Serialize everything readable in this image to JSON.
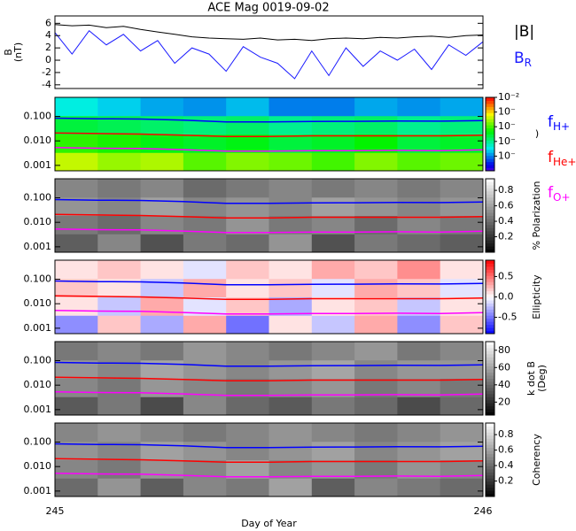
{
  "chart_data": [
    {
      "type": "line",
      "title": "ACE Mag 0019-09-02",
      "ylabel": [
        "B",
        "(nT)"
      ],
      "xlim": [
        245,
        246
      ],
      "ylim": [
        -4.6,
        7.2
      ],
      "yticks": [
        -4,
        -2,
        0,
        2,
        4,
        6
      ],
      "x": [
        245,
        245.04,
        245.08,
        245.12,
        245.16,
        245.2,
        245.24,
        245.28,
        245.32,
        245.36,
        245.4,
        245.44,
        245.48,
        245.52,
        245.56,
        245.6,
        245.64,
        245.68,
        245.72,
        245.76,
        245.8,
        245.84,
        245.88,
        245.92,
        245.96,
        246
      ],
      "series": [
        {
          "name": "|B|",
          "color": "#000000",
          "values": [
            5.8,
            5.6,
            5.7,
            5.3,
            5.5,
            5.0,
            4.6,
            4.2,
            3.8,
            3.6,
            3.5,
            3.4,
            3.6,
            3.3,
            3.4,
            3.2,
            3.5,
            3.6,
            3.5,
            3.7,
            3.6,
            3.8,
            3.9,
            3.7,
            4.0,
            4.1
          ]
        },
        {
          "name": "B",
          "subscript": "R",
          "color": "#1a1aff",
          "values": [
            4.5,
            1.0,
            4.8,
            2.5,
            4.2,
            1.5,
            3.2,
            -0.5,
            2.0,
            1.0,
            -1.8,
            2.2,
            0.5,
            -0.5,
            -3.0,
            1.5,
            -2.5,
            2.0,
            -1.0,
            1.5,
            0.0,
            1.8,
            -1.5,
            2.5,
            0.8,
            3.0
          ]
        }
      ]
    },
    {
      "type": "spectrogram",
      "xlim": [
        245,
        246
      ],
      "ylim": [
        0.0006,
        0.6
      ],
      "ylog": true,
      "yticks": [
        {
          "value": 0.001,
          "label": "0.001"
        },
        {
          "value": 0.01,
          "label": "0.010"
        },
        {
          "value": 0.1,
          "label": "0.100"
        }
      ],
      "colormap": "rainbow",
      "clim": [
        -7,
        -2
      ],
      "cticks": [
        {
          "value": -2,
          "label": "10⁻²"
        },
        {
          "value": -3,
          "label": "10⁻"
        },
        {
          "value": -4,
          "label": "10⁻"
        },
        {
          "value": -5,
          "label": "10⁻"
        },
        {
          "value": -6,
          "label": "10⁻"
        }
      ],
      "colorbar_label": [
        ")"
      ],
      "z": [
        [
          -3.4,
          -3.6,
          -3.5,
          -3.9,
          -3.7,
          -3.8,
          -4.0,
          -3.7,
          -3.9,
          -3.8
        ],
        [
          -4.1,
          -4.2,
          -4.4,
          -4.5,
          -4.4,
          -4.6,
          -4.5,
          -4.3,
          -4.6,
          -4.5
        ],
        [
          -4.6,
          -4.7,
          -4.8,
          -4.9,
          -4.8,
          -5.0,
          -4.9,
          -4.8,
          -5.0,
          -4.9
        ],
        [
          -5.4,
          -5.6,
          -5.8,
          -5.9,
          -5.7,
          -6.0,
          -6.0,
          -5.8,
          -5.9,
          -5.8
        ]
      ],
      "fx": [
        245,
        245.1,
        245.2,
        245.3,
        245.4,
        245.5,
        245.6,
        245.7,
        245.8,
        245.9,
        246
      ],
      "series": [
        {
          "name": "f",
          "subscript": "H+",
          "color": "#0000ff",
          "values": [
            0.085,
            0.08,
            0.078,
            0.07,
            0.06,
            0.06,
            0.062,
            0.063,
            0.065,
            0.064,
            0.068
          ]
        },
        {
          "name": "f",
          "subscript": "He+",
          "color": "#ff0000",
          "values": [
            0.021,
            0.02,
            0.019,
            0.017,
            0.015,
            0.015,
            0.016,
            0.016,
            0.016,
            0.016,
            0.017
          ]
        },
        {
          "name": "f",
          "subscript": "O+",
          "color": "#ff00ff",
          "values": [
            0.0053,
            0.005,
            0.0049,
            0.0044,
            0.0038,
            0.0038,
            0.004,
            0.004,
            0.0041,
            0.004,
            0.0043
          ]
        }
      ]
    },
    {
      "type": "spectrogram",
      "xlim": [
        245,
        246
      ],
      "ylim": [
        0.0006,
        0.6
      ],
      "ylog": true,
      "yticks": [
        {
          "value": 0.001,
          "label": "0.001"
        },
        {
          "value": 0.01,
          "label": "0.010"
        },
        {
          "value": 0.1,
          "label": "0.100"
        }
      ],
      "colormap": "gray",
      "clim": [
        0,
        0.95
      ],
      "cticks": [
        0.2,
        0.4,
        0.6,
        0.8
      ],
      "colorbar_label": [
        "% Polarization"
      ],
      "z": [
        [
          0.35,
          0.5,
          0.3,
          0.45,
          0.4,
          0.55,
          0.3,
          0.45,
          0.4,
          0.35
        ],
        [
          0.45,
          0.4,
          0.5,
          0.45,
          0.55,
          0.45,
          0.5,
          0.4,
          0.5,
          0.45
        ],
        [
          0.55,
          0.5,
          0.6,
          0.5,
          0.55,
          0.5,
          0.6,
          0.55,
          0.5,
          0.55
        ],
        [
          0.5,
          0.45,
          0.5,
          0.4,
          0.45,
          0.5,
          0.45,
          0.5,
          0.45,
          0.5
        ]
      ]
    },
    {
      "type": "spectrogram",
      "xlim": [
        245,
        246
      ],
      "ylim": [
        0.0006,
        0.6
      ],
      "ylog": true,
      "yticks": [
        {
          "value": 0.001,
          "label": "0.001"
        },
        {
          "value": 0.01,
          "label": "0.010"
        },
        {
          "value": 0.1,
          "label": "0.100"
        }
      ],
      "colormap": "bwr",
      "clim": [
        -0.9,
        0.9
      ],
      "cticks": [
        {
          "value": -0.5,
          "label": "-0.5"
        },
        {
          "value": 0,
          "label": "0.0"
        },
        0.5
      ],
      "colorbar_label": [
        "Ellipticity"
      ],
      "z": [
        [
          -0.4,
          0.2,
          -0.3,
          0.3,
          -0.5,
          0.1,
          -0.2,
          0.3,
          -0.4,
          0.2
        ],
        [
          0.1,
          -0.2,
          0.3,
          -0.1,
          0.2,
          -0.3,
          0.1,
          0.2,
          -0.2,
          0.1
        ],
        [
          0.2,
          0.1,
          -0.2,
          0.3,
          0.1,
          0.2,
          -0.1,
          0.3,
          0.2,
          -0.1
        ],
        [
          0.1,
          0.2,
          0.1,
          -0.1,
          0.2,
          0.1,
          0.3,
          0.2,
          0.4,
          0.1
        ]
      ]
    },
    {
      "type": "spectrogram",
      "xlim": [
        245,
        246
      ],
      "ylim": [
        0.0006,
        0.6
      ],
      "ylog": true,
      "yticks": [
        {
          "value": 0.001,
          "label": "0.001"
        },
        {
          "value": 0.01,
          "label": "0.010"
        },
        {
          "value": 0.1,
          "label": "0.100"
        }
      ],
      "colormap": "gray",
      "clim": [
        5,
        90
      ],
      "cticks": [
        20,
        40,
        60,
        80
      ],
      "colorbar_label": [
        "k dot B",
        "(Deg)"
      ],
      "z": [
        [
          35,
          45,
          30,
          50,
          40,
          35,
          45,
          40,
          30,
          40
        ],
        [
          50,
          45,
          55,
          50,
          45,
          50,
          55,
          45,
          50,
          45
        ],
        [
          55,
          50,
          60,
          55,
          50,
          55,
          60,
          50,
          55,
          55
        ],
        [
          45,
          50,
          45,
          55,
          50,
          45,
          50,
          55,
          45,
          50
        ]
      ]
    },
    {
      "type": "spectrogram",
      "xlim": [
        245,
        246
      ],
      "ylim": [
        0.0006,
        0.6
      ],
      "ylog": true,
      "yticks": [
        {
          "value": 0.001,
          "label": "0.001"
        },
        {
          "value": 0.01,
          "label": "0.010"
        },
        {
          "value": 0.1,
          "label": "0.100"
        }
      ],
      "colormap": "gray",
      "clim": [
        0,
        0.95
      ],
      "cticks": [
        0.2,
        0.4,
        0.6,
        0.8
      ],
      "colorbar_label": [
        "Coherency"
      ],
      "xticks": [
        245,
        246
      ],
      "xlabel": "Day of Year",
      "z": [
        [
          0.4,
          0.55,
          0.35,
          0.5,
          0.45,
          0.6,
          0.35,
          0.5,
          0.45,
          0.4
        ],
        [
          0.5,
          0.45,
          0.55,
          0.5,
          0.6,
          0.5,
          0.55,
          0.45,
          0.55,
          0.5
        ],
        [
          0.55,
          0.5,
          0.6,
          0.55,
          0.5,
          0.55,
          0.6,
          0.5,
          0.55,
          0.6
        ],
        [
          0.5,
          0.55,
          0.5,
          0.45,
          0.5,
          0.55,
          0.5,
          0.45,
          0.5,
          0.55
        ]
      ]
    }
  ]
}
